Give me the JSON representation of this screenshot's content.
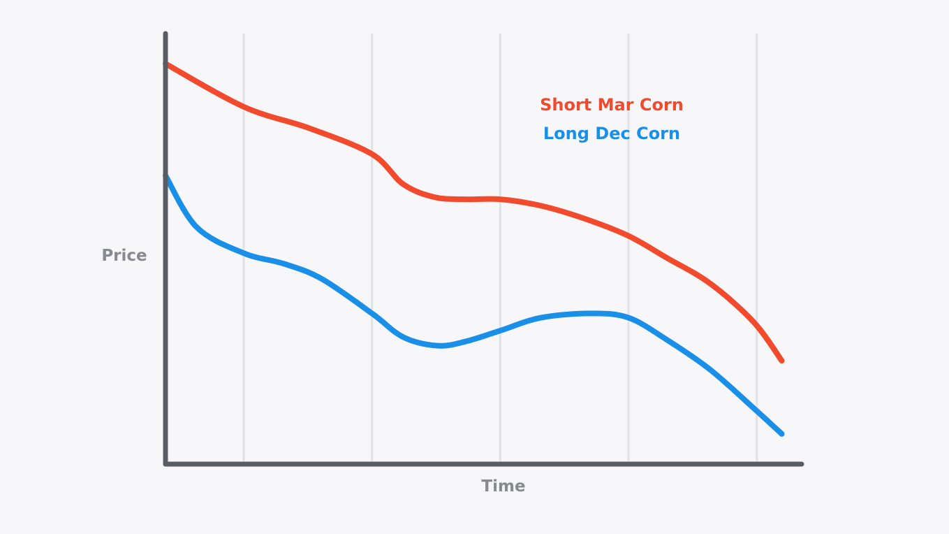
{
  "chart_data": {
    "type": "line",
    "title": "",
    "xlabel": "Time",
    "ylabel": "Price",
    "xlim": [
      0,
      100
    ],
    "ylim": [
      0,
      100
    ],
    "grid": "vertical",
    "legend_position": "top-right",
    "x_gridlines": [
      12.5,
      33,
      53.5,
      74,
      94.5
    ],
    "series": [
      {
        "name": "Short Mar Corn",
        "color": "#f24a2d",
        "x": [
          0,
          12.5,
          23,
          33,
          38,
          43,
          48,
          53.5,
          60,
          67,
          74,
          80,
          87,
          94,
          98.5
        ],
        "y": [
          93,
          83,
          78,
          72,
          65,
          62,
          61.5,
          61.5,
          60,
          57,
          53,
          48,
          42,
          33,
          24
        ]
      },
      {
        "name": "Long Dec Corn",
        "color": "#1a8fe8",
        "x": [
          0,
          5,
          12.5,
          19,
          25,
          33,
          38,
          43.5,
          48,
          53.5,
          60,
          68,
          74,
          80,
          87,
          94,
          98.5
        ],
        "y": [
          67,
          55,
          49,
          46.5,
          43,
          35,
          29.5,
          27.5,
          28.5,
          31,
          34,
          35,
          34,
          29,
          22,
          13,
          7
        ]
      }
    ]
  },
  "colors": {
    "background": "#f7f7fa",
    "axis": "#595c63",
    "grid": "#e1e2e6",
    "label": "#888a90"
  }
}
